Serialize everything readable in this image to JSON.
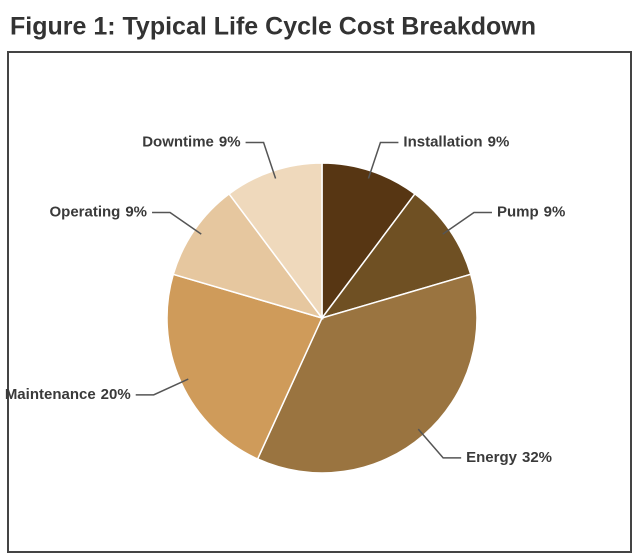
{
  "chart_data": {
    "type": "pie",
    "title": "Figure 1: Typical Life Cycle Cost Breakdown",
    "categories": [
      "Installation",
      "Pump",
      "Energy",
      "Maintenance",
      "Operating",
      "Downtime"
    ],
    "values": [
      9,
      9,
      32,
      20,
      9,
      9
    ],
    "value_labels": [
      "9%",
      "9%",
      "32%",
      "20%",
      "9%",
      "9%"
    ],
    "colors": [
      "#573613",
      "#6f5023",
      "#9a7440",
      "#cf9b5a",
      "#e6c79f",
      "#efd9bc"
    ]
  }
}
